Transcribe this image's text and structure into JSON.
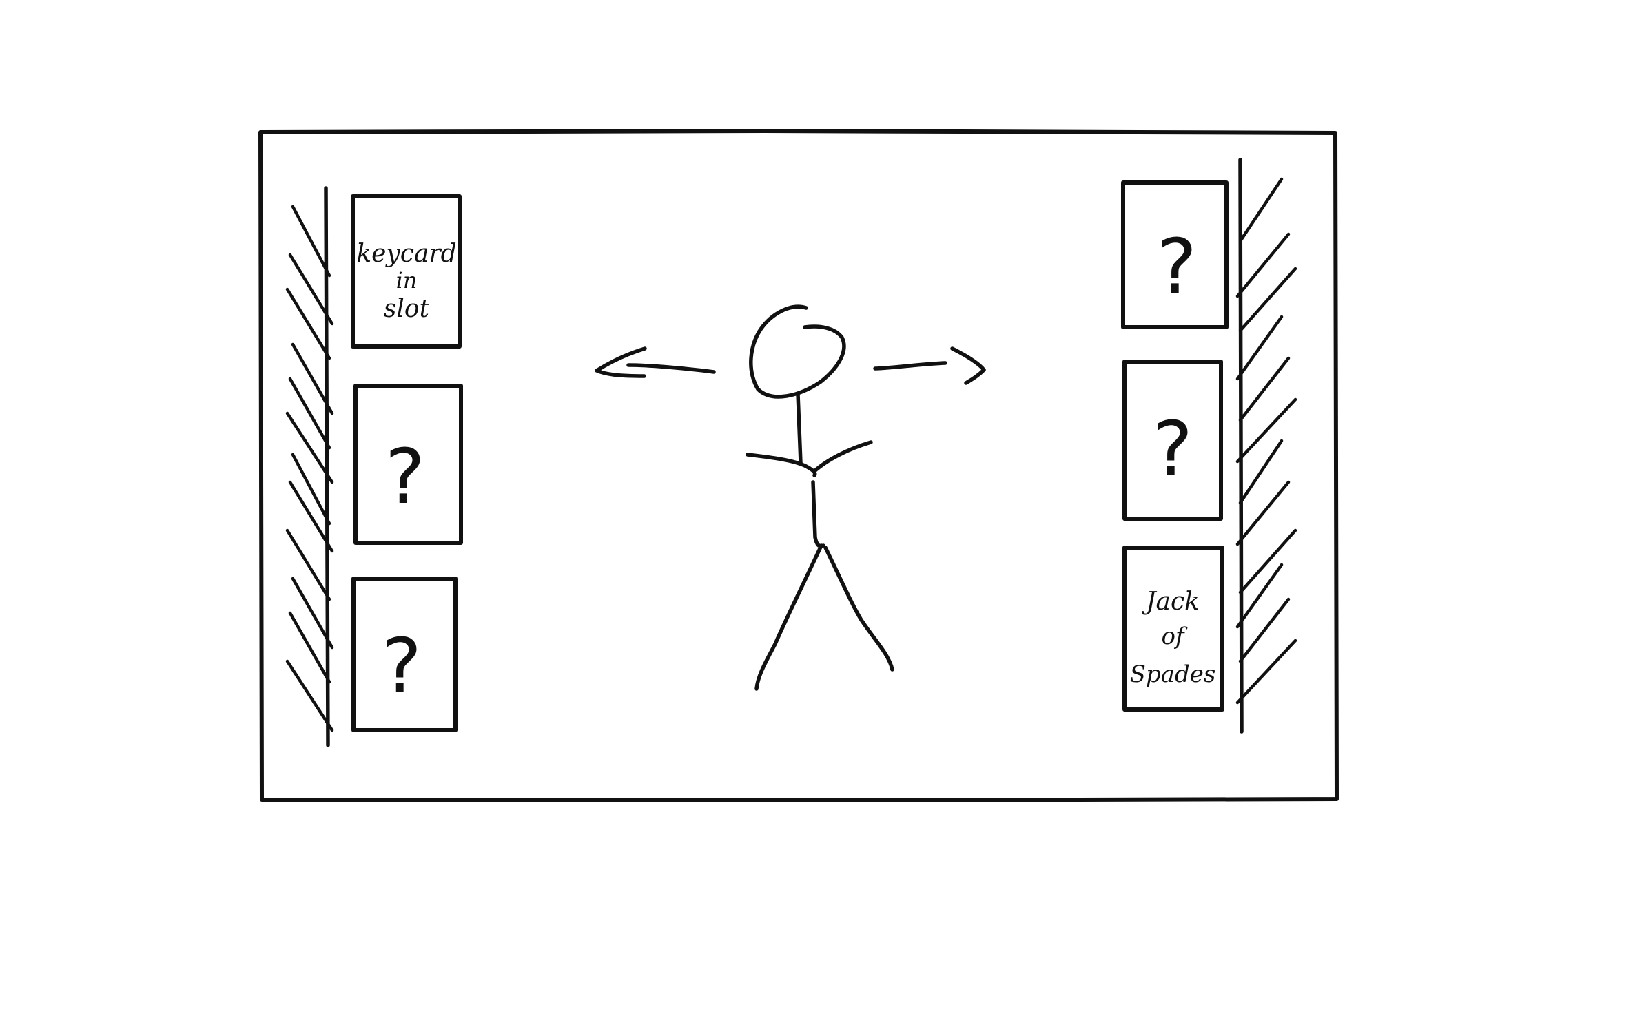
{
  "scene": {
    "left_cards": [
      {
        "lines": [
          "keycard",
          "in",
          "slot"
        ]
      },
      {
        "lines": [
          "?"
        ]
      },
      {
        "lines": [
          "?"
        ]
      }
    ],
    "right_cards": [
      {
        "lines": [
          "?"
        ]
      },
      {
        "lines": [
          "?"
        ]
      },
      {
        "lines": [
          "Jack",
          "of",
          "Spades"
        ]
      }
    ],
    "stroke_color": "#111111",
    "background_color": "#ffffff"
  }
}
